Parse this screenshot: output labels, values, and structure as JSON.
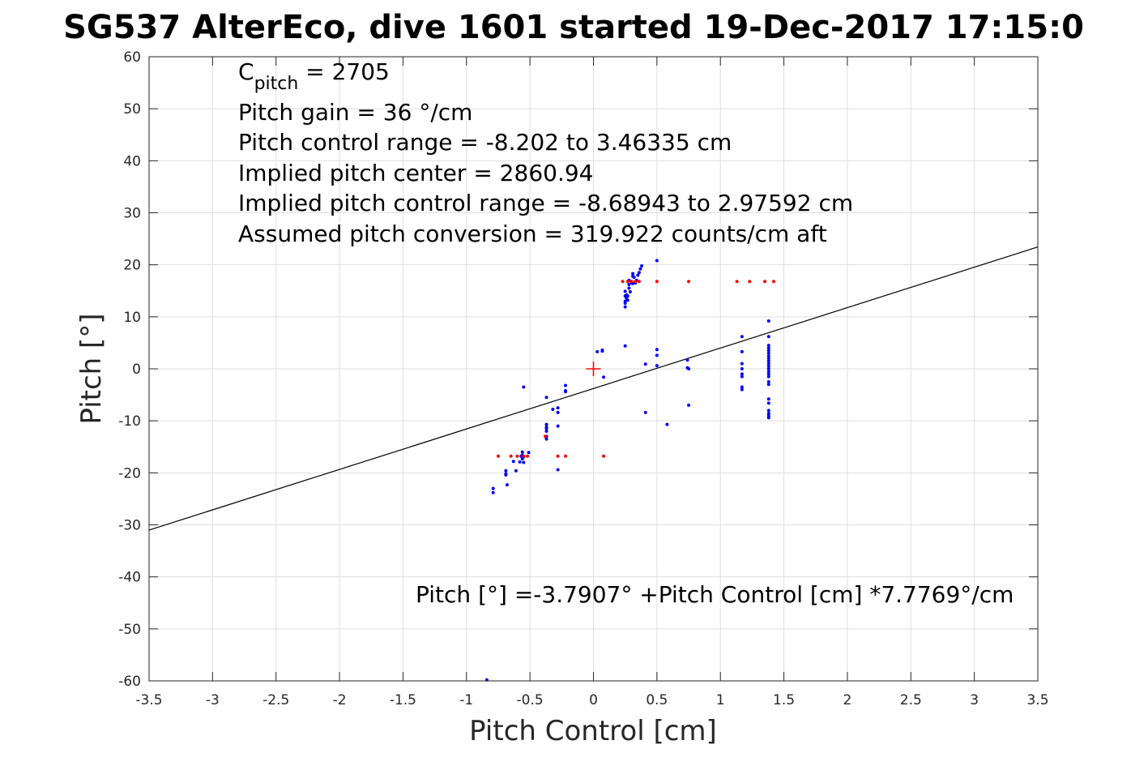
{
  "chart_data": {
    "type": "scatter",
    "title": "SG537 AlterEco, dive 1601 started 19-Dec-2017 17:15:0",
    "xlabel": "Pitch Control [cm]",
    "ylabel": "Pitch [°]",
    "xlim": [
      -3.5,
      3.5
    ],
    "ylim": [
      -60,
      60
    ],
    "xticks": [
      -3.5,
      -3,
      -2.5,
      -2,
      -1.5,
      -1,
      -0.5,
      0,
      0.5,
      1,
      1.5,
      2,
      2.5,
      3,
      3.5
    ],
    "xtick_labels": [
      "-3.5",
      "-3",
      "-2.5",
      "-2",
      "-1.5",
      "-1",
      "-0.5",
      "0",
      "0.5",
      "1",
      "1.5",
      "2",
      "2.5",
      "3",
      "3.5"
    ],
    "yticks": [
      -60,
      -50,
      -40,
      -30,
      -20,
      -10,
      0,
      10,
      20,
      30,
      40,
      50,
      60
    ],
    "ytick_labels": [
      "-60",
      "-50",
      "-40",
      "-30",
      "-20",
      "-10",
      "0",
      "10",
      "20",
      "30",
      "40",
      "50",
      "60"
    ],
    "grid": true,
    "colors": {
      "measured": "#0000ff",
      "commanded": "#ff0000",
      "fit": "#000000",
      "center": "#ff0000",
      "axis": "#262626"
    },
    "annotations": {
      "cpitch_prefix": "C",
      "cpitch_sub": "pitch",
      "cpitch_value": " = 2705",
      "gain": "Pitch gain = 36 °/cm",
      "control_range": "Pitch control range = -8.202 to 3.46335 cm",
      "implied_center": "Implied pitch center = 2860.94",
      "implied_range": "Implied pitch control range = -8.68943 to 2.97592 cm",
      "conversion": "Assumed pitch conversion = 319.922 counts/cm aft",
      "fit_equation": "Pitch [°] =-3.7907° +Pitch Control [cm] *7.7769°/cm"
    },
    "fit_line": {
      "intercept": -3.7907,
      "slope": 7.7769
    },
    "center_marker": {
      "x": 0,
      "y": 0
    },
    "series": [
      {
        "marker": "dot",
        "x": [
          -0.84,
          -0.79,
          -0.79,
          -0.69,
          -0.69,
          -0.69,
          -0.68,
          -0.63,
          -0.61,
          -0.58,
          -0.56,
          -0.56,
          -0.56,
          -0.55,
          -0.55,
          -0.55,
          -0.51,
          -0.57,
          -0.37,
          -0.37,
          -0.37,
          -0.37,
          -0.37,
          -0.37,
          -0.37,
          -0.32,
          -0.28,
          -0.28,
          -0.28,
          -0.28,
          -0.22,
          -0.22,
          -0.22,
          0.03,
          0.07,
          0.07,
          0.08,
          0.25,
          0.25,
          0.25,
          0.25,
          0.25,
          0.25,
          0.26,
          0.26,
          0.27,
          0.27,
          0.28,
          0.28,
          0.28,
          0.29,
          0.3,
          0.3,
          0.31,
          0.31,
          0.31,
          0.32,
          0.33,
          0.34,
          0.35,
          0.36,
          0.37,
          0.38,
          0.41,
          0.41,
          0.5,
          0.5,
          0.5,
          0.5,
          0.58,
          0.74,
          0.74,
          0.75,
          0.75,
          1.17,
          1.17,
          1.17,
          1.17,
          1.17,
          1.17,
          1.17,
          1.17,
          1.38,
          1.38,
          1.38,
          1.38,
          1.38,
          1.38,
          1.38,
          1.38,
          1.38,
          1.38,
          1.38,
          1.38,
          1.38,
          1.38,
          1.38,
          1.38,
          1.38,
          1.38,
          1.38,
          1.38,
          1.38,
          1.38,
          1.38
        ],
        "y": [
          -59.8,
          -23.0,
          -23.8,
          -19.6,
          -20.2,
          -20.4,
          -22.3,
          -17.8,
          -19.6,
          -17.9,
          -16.0,
          -16.6,
          -17.3,
          -18.0,
          -16.9,
          -3.5,
          -16.1,
          -16.8,
          -5.5,
          -10.7,
          -11.2,
          -11.5,
          -12.0,
          -13.5,
          -13.0,
          -7.8,
          -7.5,
          -8.4,
          -11.0,
          -19.4,
          -3.2,
          -4.2,
          -4.4,
          3.3,
          3.6,
          3.4,
          -1.6,
          4.4,
          11.9,
          12.6,
          13.0,
          14.0,
          14.9,
          13.6,
          14.2,
          13.2,
          14.0,
          15.5,
          16.2,
          17.0,
          14.8,
          16.8,
          16.5,
          17.8,
          18.3,
          16.4,
          17.6,
          16.5,
          17.0,
          18.0,
          18.5,
          19.2,
          19.8,
          0.9,
          -8.4,
          20.8,
          3.7,
          2.6,
          0.6,
          -10.7,
          1.7,
          0.2,
          -7.0,
          0.0,
          6.2,
          3.3,
          1.0,
          0.0,
          -1.0,
          -1.5,
          -3.5,
          -4.0,
          9.2,
          6.2,
          4.5,
          4.0,
          3.5,
          3.0,
          2.5,
          2.0,
          1.5,
          1.0,
          0.5,
          0.0,
          -0.5,
          -1.0,
          -1.5,
          -2.5,
          -3.0,
          -5.8,
          -6.6,
          -8.0,
          -9.0,
          -9.4,
          -8.6
        ]
      },
      {
        "marker": "dot",
        "x": [
          -0.75,
          -0.65,
          -0.6,
          -0.55,
          -0.52,
          -0.38,
          -0.28,
          -0.22,
          0.08,
          0.23,
          0.27,
          0.3,
          0.33,
          0.36,
          0.5,
          0.75,
          1.13,
          1.23,
          1.35,
          1.42
        ],
        "y": [
          -16.8,
          -16.8,
          -16.8,
          -16.8,
          -16.8,
          -13.0,
          -16.8,
          -16.8,
          -16.8,
          16.8,
          16.8,
          16.8,
          16.8,
          16.8,
          16.8,
          16.8,
          16.8,
          16.8,
          16.8,
          16.8
        ]
      }
    ]
  }
}
